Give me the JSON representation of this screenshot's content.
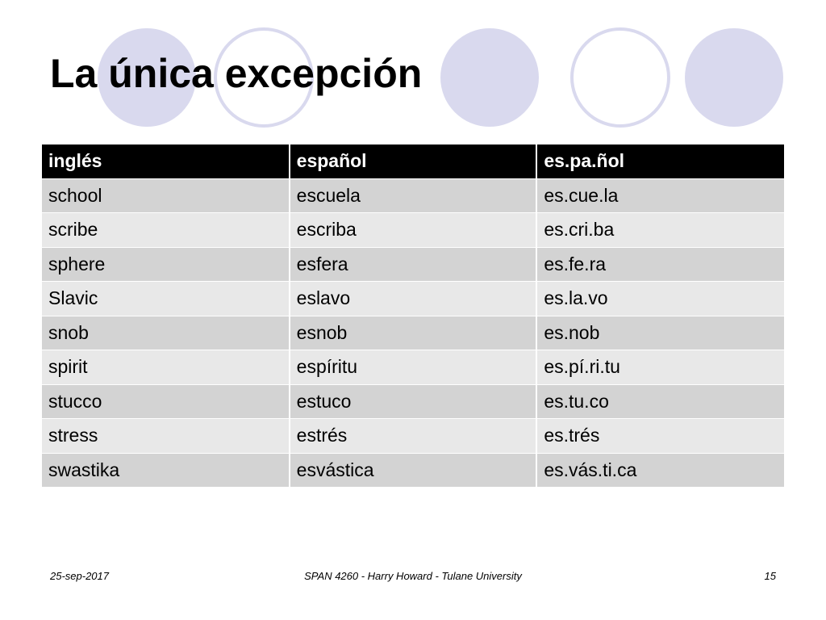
{
  "slide": {
    "title": "La única excepción",
    "accent_fill": "#d9d9ee",
    "accent_stroke": "#d9d9ee"
  },
  "table": {
    "headers": [
      "inglés",
      "español",
      "es.pa.ñol"
    ],
    "rows": [
      [
        "school",
        "escuela",
        "es.cue.la"
      ],
      [
        "scribe",
        "escriba",
        "es.cri.ba"
      ],
      [
        "sphere",
        "esfera",
        "es.fe.ra"
      ],
      [
        "Slavic",
        "eslavo",
        "es.la.vo"
      ],
      [
        "snob",
        "esnob",
        "es.nob"
      ],
      [
        "spirit",
        "espíritu",
        "es.pí.ri.tu"
      ],
      [
        "stucco",
        "estuco",
        "es.tu.co"
      ],
      [
        "stress",
        "estrés",
        "es.trés"
      ],
      [
        "swastika",
        "esvástica",
        "es.vás.ti.ca"
      ]
    ]
  },
  "footer": {
    "date": "25-sep-2017",
    "course": "SPAN 4260 - Harry Howard - Tulane University",
    "page": "15"
  }
}
